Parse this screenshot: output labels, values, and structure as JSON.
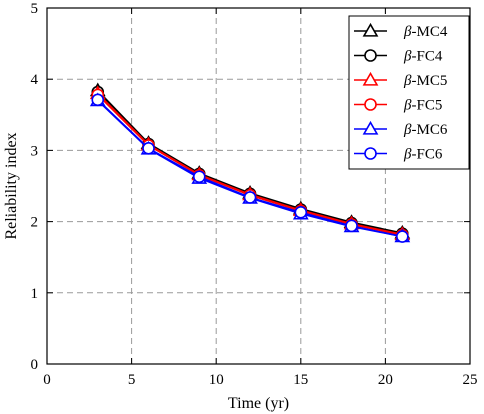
{
  "chart_data": {
    "type": "line",
    "xlabel": "Time (yr)",
    "ylabel": "Reliability index",
    "xlim": [
      0,
      25
    ],
    "ylim": [
      0,
      5
    ],
    "xticks": [
      0,
      5,
      10,
      15,
      20,
      25
    ],
    "yticks": [
      0,
      1,
      2,
      3,
      4,
      5
    ],
    "grid": true,
    "legend_position": "top-right",
    "x": [
      3,
      6,
      9,
      12,
      15,
      18,
      21
    ],
    "series": [
      {
        "name": "β-MC4",
        "name_prefix": "β",
        "name_suffix": "-MC4",
        "color": "#000000",
        "marker": "triangle",
        "values": [
          3.84,
          3.1,
          2.68,
          2.4,
          2.18,
          1.99,
          1.84
        ]
      },
      {
        "name": "β-FC4",
        "name_prefix": "β",
        "name_suffix": "-FC4",
        "color": "#000000",
        "marker": "circle",
        "values": [
          3.82,
          3.09,
          2.67,
          2.39,
          2.17,
          1.98,
          1.83
        ]
      },
      {
        "name": "β-MC5",
        "name_prefix": "β",
        "name_suffix": "-MC5",
        "color": "#ff0000",
        "marker": "triangle",
        "values": [
          3.8,
          3.08,
          2.66,
          2.38,
          2.16,
          1.97,
          1.82
        ]
      },
      {
        "name": "β-FC5",
        "name_prefix": "β",
        "name_suffix": "-FC5",
        "color": "#ff0000",
        "marker": "circle",
        "values": [
          3.78,
          3.07,
          2.65,
          2.37,
          2.15,
          1.96,
          1.81
        ]
      },
      {
        "name": "β-MC6",
        "name_prefix": "β",
        "name_suffix": "-MC6",
        "color": "#0000ff",
        "marker": "triangle",
        "values": [
          3.7,
          3.02,
          2.61,
          2.33,
          2.11,
          1.93,
          1.79
        ]
      },
      {
        "name": "β-FC6",
        "name_prefix": "β",
        "name_suffix": "-FC6",
        "color": "#0000ff",
        "marker": "circle",
        "values": [
          3.71,
          3.03,
          2.63,
          2.34,
          2.13,
          1.94,
          1.79
        ]
      }
    ]
  }
}
